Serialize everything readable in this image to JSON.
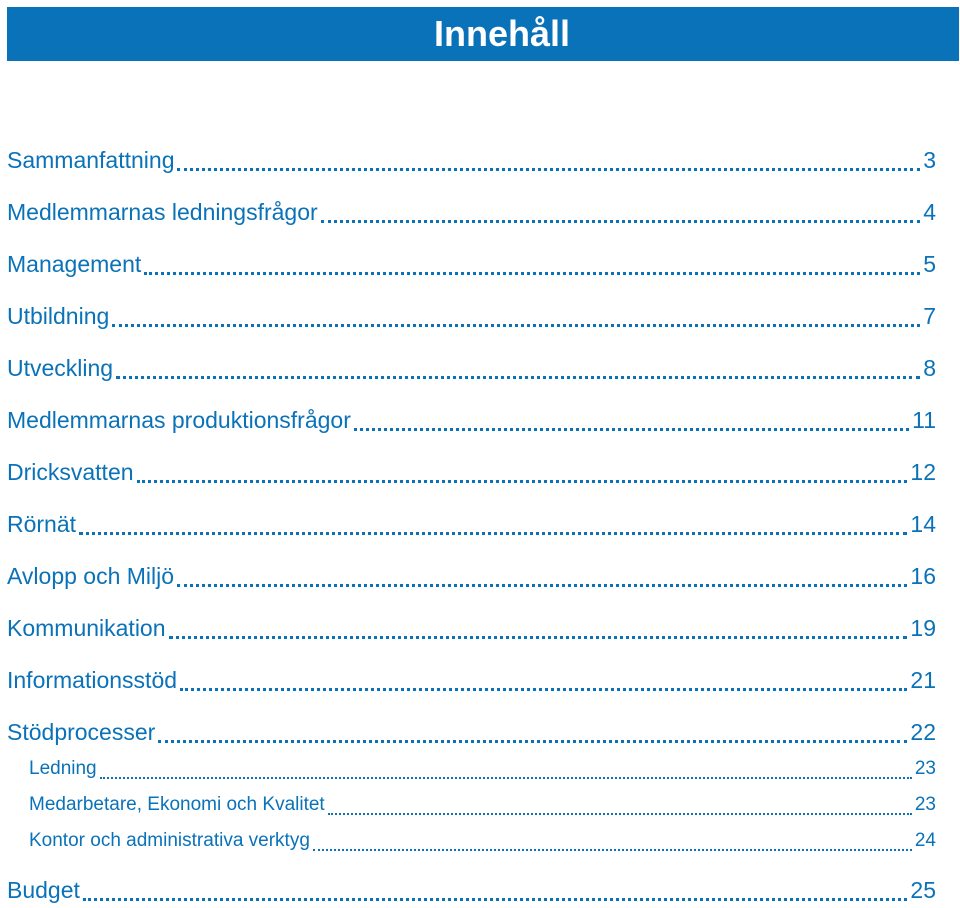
{
  "header": {
    "title": "Innehåll"
  },
  "colors": {
    "accent": "#0a72b8",
    "background": "#ffffff"
  },
  "toc": [
    {
      "label": "Sammanfattning",
      "page": "3"
    },
    {
      "label": "Medlemmarnas ledningsfrågor",
      "page": "4"
    },
    {
      "label": "Management",
      "page": "5"
    },
    {
      "label": "Utbildning",
      "page": "7"
    },
    {
      "label": "Utveckling",
      "page": "8"
    },
    {
      "label": "Medlemmarnas produktionsfrågor",
      "page": "11"
    },
    {
      "label": "Dricksvatten",
      "page": "12"
    },
    {
      "label": "Rörnät",
      "page": "14"
    },
    {
      "label": "Avlopp och Miljö",
      "page": "16"
    },
    {
      "label": "Kommunikation",
      "page": "19"
    },
    {
      "label": "Informationsstöd",
      "page": "21"
    },
    {
      "label": "Stödprocesser",
      "page": "22"
    },
    {
      "label": "Ledning",
      "page": "23"
    },
    {
      "label": "Medarbetare, Ekonomi och Kvalitet",
      "page": "23"
    },
    {
      "label": "Kontor och administrativa verktyg",
      "page": "24"
    },
    {
      "label": "Budget",
      "page": "25"
    }
  ]
}
